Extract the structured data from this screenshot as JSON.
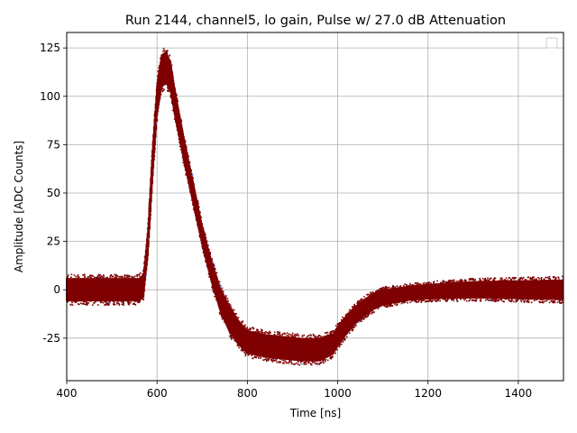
{
  "chart_data": {
    "type": "scatter",
    "title": "Run 2144, channel5, lo gain, Pulse w/ 27.0 dB Attenuation",
    "xlabel": "Time [ns]",
    "ylabel": "Amplitude [ADC Counts]",
    "xlim": [
      400,
      1500
    ],
    "ylim": [
      -47,
      133
    ],
    "xticks": [
      400,
      600,
      800,
      1000,
      1200,
      1400
    ],
    "yticks": [
      -25,
      0,
      25,
      50,
      75,
      100,
      125
    ],
    "grid": true,
    "legend": {
      "position": "top-right",
      "entries": []
    },
    "colors": {
      "primary": "#7f0000",
      "secondary": "#6495ed"
    },
    "series": [
      {
        "color": "#7f0000",
        "points": [
          [
            400,
            0
          ],
          [
            560,
            0
          ],
          [
            570,
            2
          ],
          [
            580,
            25
          ],
          [
            590,
            65
          ],
          [
            600,
            98
          ],
          [
            610,
            113
          ],
          [
            620,
            115
          ],
          [
            630,
            110
          ],
          [
            640,
            96
          ],
          [
            660,
            72
          ],
          [
            680,
            50
          ],
          [
            700,
            28
          ],
          [
            720,
            10
          ],
          [
            740,
            -5
          ],
          [
            760,
            -15
          ],
          [
            780,
            -22
          ],
          [
            800,
            -27
          ],
          [
            840,
            -29
          ],
          [
            880,
            -30
          ],
          [
            920,
            -31
          ],
          [
            960,
            -31
          ],
          [
            990,
            -28
          ],
          [
            1000,
            -24
          ],
          [
            1020,
            -18
          ],
          [
            1040,
            -13
          ],
          [
            1060,
            -9
          ],
          [
            1080,
            -6
          ],
          [
            1100,
            -4
          ],
          [
            1150,
            -2
          ],
          [
            1200,
            -1
          ],
          [
            1300,
            0
          ],
          [
            1500,
            0
          ]
        ],
        "band_width": [
          [
            400,
            8
          ],
          [
            570,
            8
          ],
          [
            590,
            12
          ],
          [
            620,
            11
          ],
          [
            650,
            9
          ],
          [
            700,
            7
          ],
          [
            760,
            9
          ],
          [
            800,
            8
          ],
          [
            960,
            8
          ],
          [
            1000,
            7
          ],
          [
            1050,
            6
          ],
          [
            1150,
            5
          ],
          [
            1500,
            7
          ]
        ]
      }
    ]
  }
}
